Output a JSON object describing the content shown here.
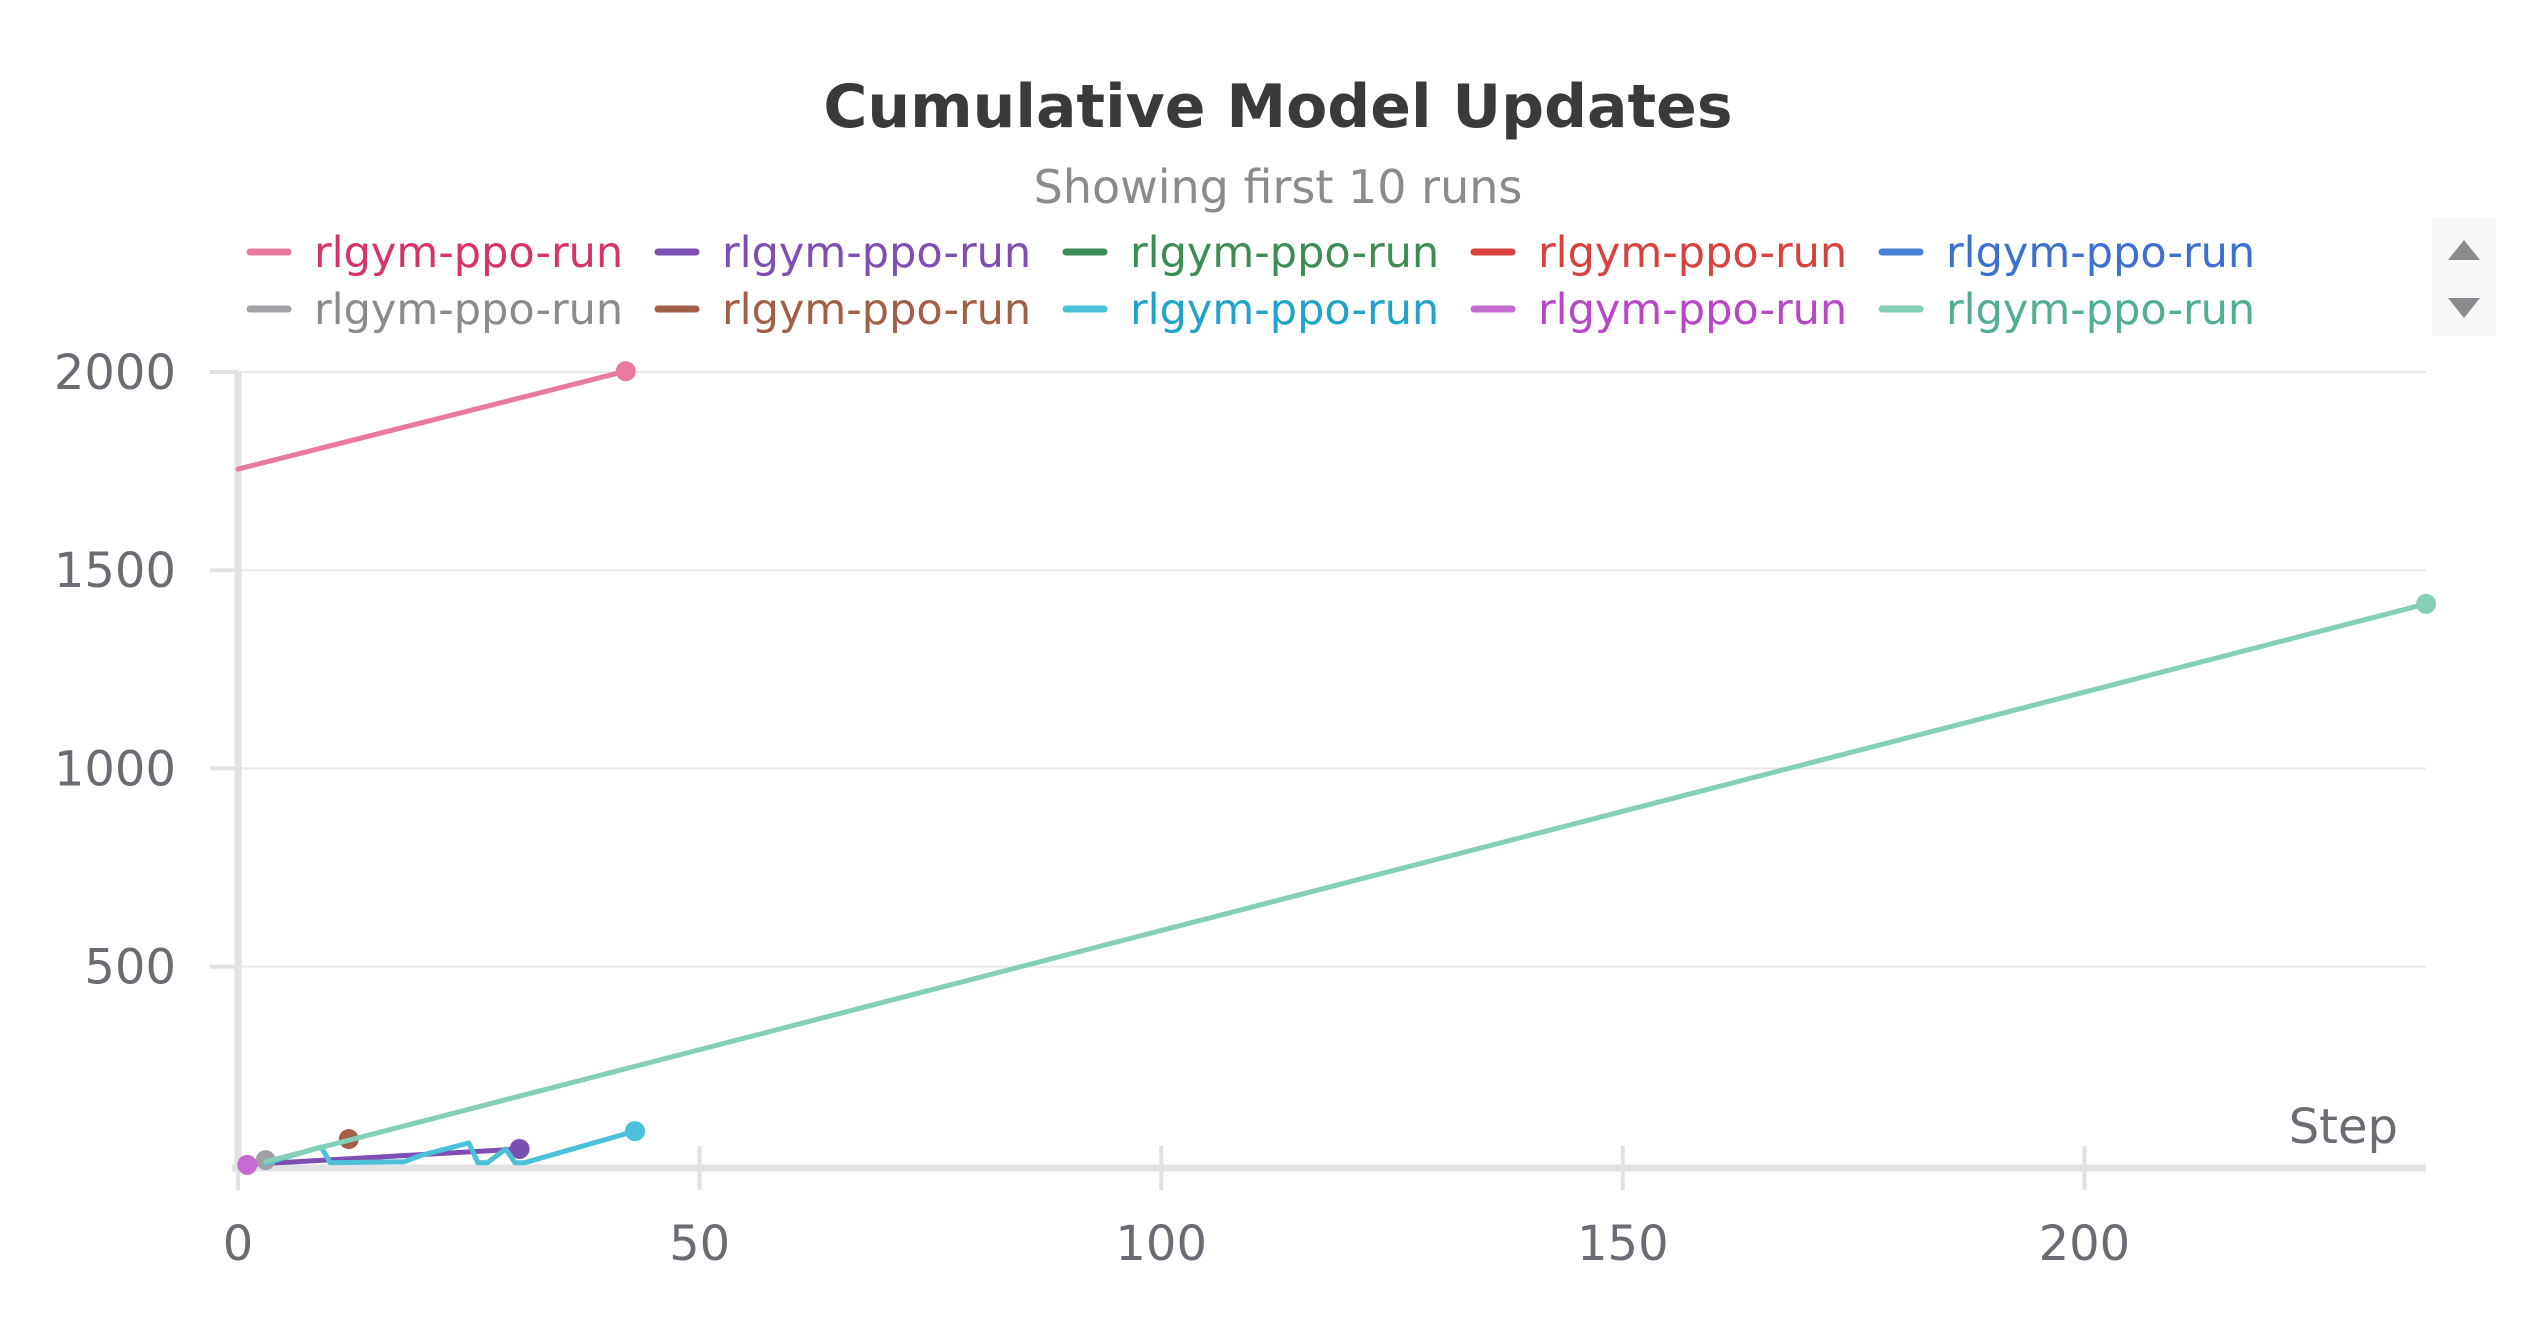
{
  "chart_data": {
    "type": "line",
    "title": "Cumulative Model Updates",
    "subtitle": "Showing first 10 runs",
    "xlabel": "Step",
    "ylabel": "",
    "xlim": [
      0,
      237
    ],
    "ylim": [
      -8,
      2000
    ],
    "xticks": [
      0,
      50,
      100,
      150,
      200
    ],
    "yticks": [
      500,
      1000,
      1500,
      2000
    ],
    "grid": true,
    "legend_position": "top",
    "series": [
      {
        "name": "rlgym-ppo-run",
        "color": "#e8799f",
        "label_color": "#d6336c",
        "x": [
          0,
          42
        ],
        "y": [
          1755,
          2002
        ],
        "end_marker": true
      },
      {
        "name": "rlgym-ppo-run",
        "color": "#7e4fb3",
        "label_color": "#7e4fb3",
        "x": [
          2,
          30.5
        ],
        "y": [
          2,
          40
        ],
        "end_marker": true
      },
      {
        "name": "rlgym-ppo-run",
        "color": "#3c8c56",
        "label_color": "#3c8c56",
        "x": [],
        "y": [],
        "end_marker": false
      },
      {
        "name": "rlgym-ppo-run",
        "color": "#d9413f",
        "label_color": "#d9413f",
        "x": [],
        "y": [],
        "end_marker": false
      },
      {
        "name": "rlgym-ppo-run",
        "color": "#4a7fd6",
        "label_color": "#3b6fd0",
        "x": [],
        "y": [],
        "end_marker": false
      },
      {
        "name": "rlgym-ppo-run",
        "color": "#a0a0a5",
        "label_color": "#8a8a8f",
        "x": [
          1,
          3
        ],
        "y": [
          5,
          12
        ],
        "end_marker": true
      },
      {
        "name": "rlgym-ppo-run",
        "color": "#a35e48",
        "label_color": "#a35e48",
        "x": [
          12
        ],
        "y": [
          65
        ],
        "end_marker": true
      },
      {
        "name": "rlgym-ppo-run",
        "color": "#4cbfd9",
        "label_color": "#21a3c9",
        "x": [
          3,
          9,
          10,
          18,
          20,
          25,
          26,
          27,
          29,
          30,
          31,
          43
        ],
        "y": [
          4,
          45,
          5,
          8,
          25,
          55,
          5,
          5,
          40,
          5,
          5,
          85
        ],
        "end_marker": true
      },
      {
        "name": "rlgym-ppo-run",
        "color": "#c46ad1",
        "label_color": "#b847c8",
        "x": [
          1
        ],
        "y": [
          0
        ],
        "end_marker": true
      },
      {
        "name": "rlgym-ppo-run",
        "color": "#84cfb8",
        "label_color": "#4fae93",
        "x": [
          3,
          237
        ],
        "y": [
          8,
          1415
        ],
        "end_marker": true
      }
    ]
  },
  "legend": {
    "scroll_up_icon": "triangle-up-icon",
    "scroll_down_icon": "triangle-down-icon"
  }
}
